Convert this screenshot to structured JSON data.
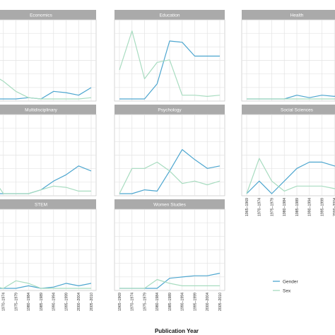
{
  "chart_data": {
    "type": "line",
    "xlabel": "Publication Year",
    "categories": [
      "1965–1969",
      "1970–1974",
      "1975–1979",
      "1980–1984",
      "1985–1989",
      "1990–1994",
      "1995–1999",
      "2000–2004",
      "2005–2010"
    ],
    "legend": {
      "position": "bottom-right",
      "entries": [
        "Gender",
        "Sex"
      ]
    },
    "colors": {
      "Gender": "#4da6cf",
      "Sex": "#a8dcc0",
      "strip": "#aaaaaa",
      "grid": "#e3e3e3",
      "panel_border": "#cccccc"
    },
    "grid": true,
    "facets": [
      {
        "name": "Economics",
        "series": [
          {
            "name": "Gender",
            "values": [
              0,
              0,
              0,
              0.01,
              0,
              0.06,
              0.05,
              0.03,
              0.09
            ]
          },
          {
            "name": "Sex",
            "values": [
              0.2,
              0.14,
              0.06,
              0.01,
              0,
              0,
              0,
              0,
              0.01
            ]
          }
        ]
      },
      {
        "name": "Education",
        "series": [
          {
            "name": "Gender",
            "values": [
              0,
              0,
              0,
              0.12,
              0.46,
              0.45,
              0.34,
              0.34,
              0.34
            ]
          },
          {
            "name": "Sex",
            "values": [
              0.23,
              0.54,
              0.16,
              0.29,
              0.31,
              0.03,
              0.03,
              0.02,
              0.03
            ]
          }
        ]
      },
      {
        "name": "Health",
        "series": [
          {
            "name": "Gender",
            "values": [
              0,
              0,
              0,
              0,
              0.03,
              0.01,
              0.03,
              0.02,
              0.07
            ]
          },
          {
            "name": "Sex",
            "values": [
              0,
              0,
              0,
              0,
              0,
              0,
              0,
              0,
              0.03
            ]
          }
        ]
      },
      {
        "name": "Multidisciplinary",
        "series": [
          {
            "name": "Gender",
            "values": [
              0,
              0,
              0,
              0,
              0.03,
              0.1,
              0.15,
              0.22,
              0.18
            ]
          },
          {
            "name": "Sex",
            "values": [
              0.15,
              0,
              0,
              0,
              0.03,
              0.06,
              0.05,
              0.02,
              0.02
            ]
          }
        ]
      },
      {
        "name": "Psychology",
        "series": [
          {
            "name": "Gender",
            "values": [
              0,
              0,
              0.03,
              0.02,
              0.18,
              0.35,
              0.27,
              0.2,
              0.22
            ]
          },
          {
            "name": "Sex",
            "values": [
              0,
              0.2,
              0.2,
              0.25,
              0.18,
              0.08,
              0.1,
              0.07,
              0.1
            ]
          }
        ]
      },
      {
        "name": "Social Sciences",
        "series": [
          {
            "name": "Gender",
            "values": [
              0,
              0.1,
              0,
              0.1,
              0.2,
              0.25,
              0.25,
              0.22,
              0.2
            ]
          },
          {
            "name": "Sex",
            "values": [
              0,
              0.28,
              0.1,
              0.02,
              0.06,
              0.06,
              0.06,
              0.04,
              0.02
            ]
          }
        ]
      },
      {
        "name": "STEM",
        "series": [
          {
            "name": "Gender",
            "values": [
              0,
              0,
              0,
              0.02,
              0,
              0.01,
              0.04,
              0.02,
              0.04
            ]
          },
          {
            "name": "Sex",
            "values": [
              0.02,
              0,
              0.06,
              0.04,
              0,
              0,
              0,
              0,
              0
            ]
          }
        ]
      },
      {
        "name": "Women Studies",
        "series": [
          {
            "name": "Gender",
            "values": [
              0,
              0,
              0,
              0,
              0.08,
              0.09,
              0.1,
              0.1,
              0.12
            ]
          },
          {
            "name": "Sex",
            "values": [
              0,
              0,
              0,
              0.07,
              0.04,
              0.02,
              0.02,
              0.02,
              0.02
            ]
          }
        ]
      }
    ]
  }
}
